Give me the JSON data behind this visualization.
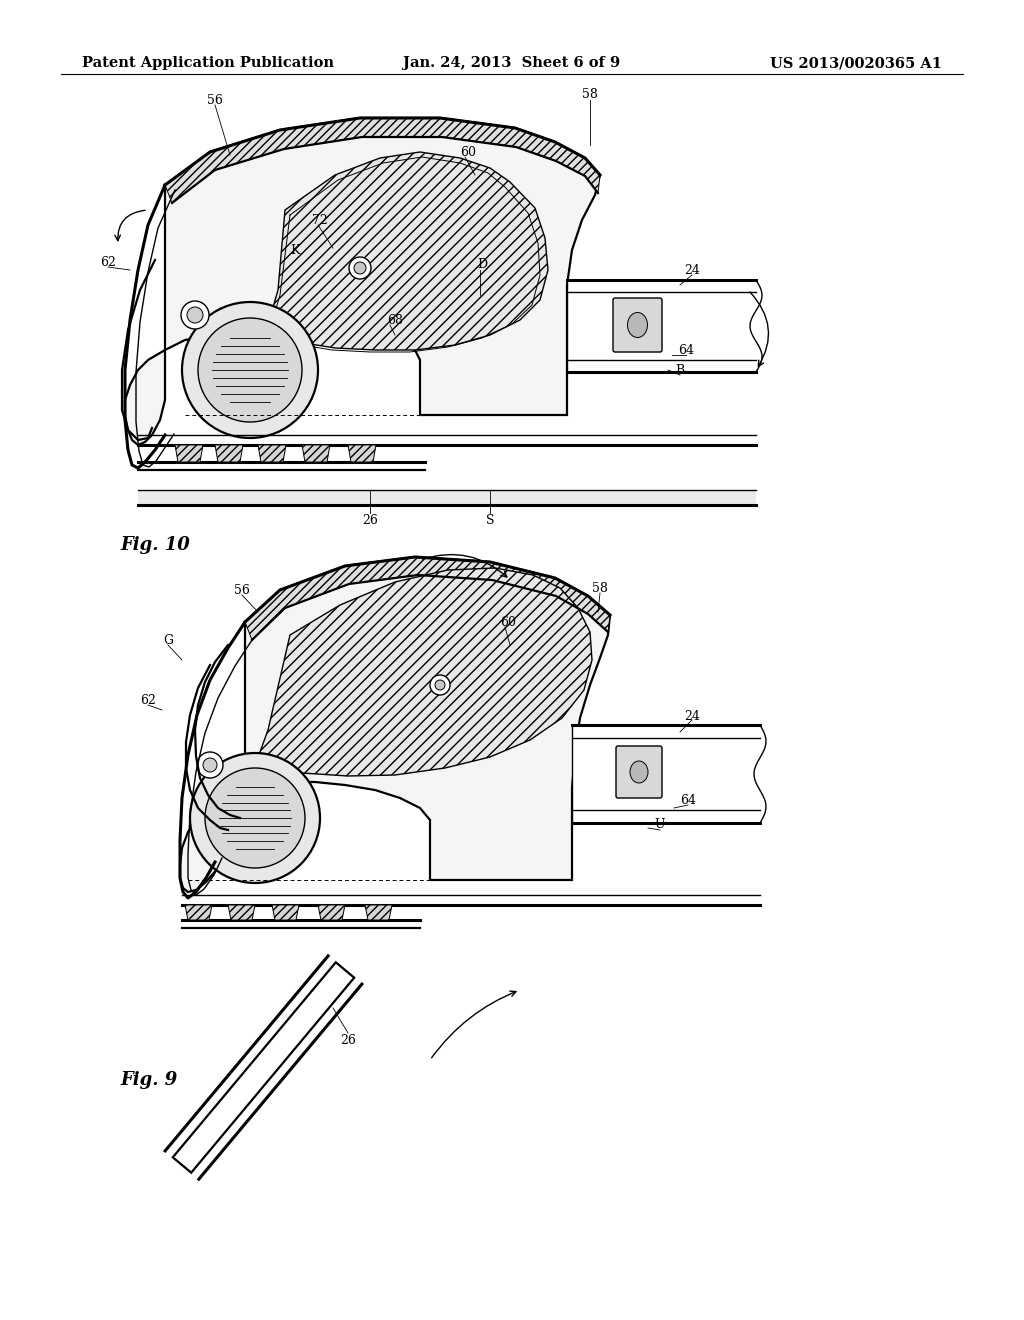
{
  "title_left": "Patent Application Publication",
  "title_center": "Jan. 24, 2013  Sheet 6 of 9",
  "title_right": "US 2013/0020365 A1",
  "fig10_label": "Fig. 10",
  "fig9_label": "Fig. 9",
  "background_color": "#ffffff",
  "line_color": "#000000",
  "header_fontsize": 10.5,
  "ref_fontsize": 9,
  "fig_label_fontsize": 13
}
